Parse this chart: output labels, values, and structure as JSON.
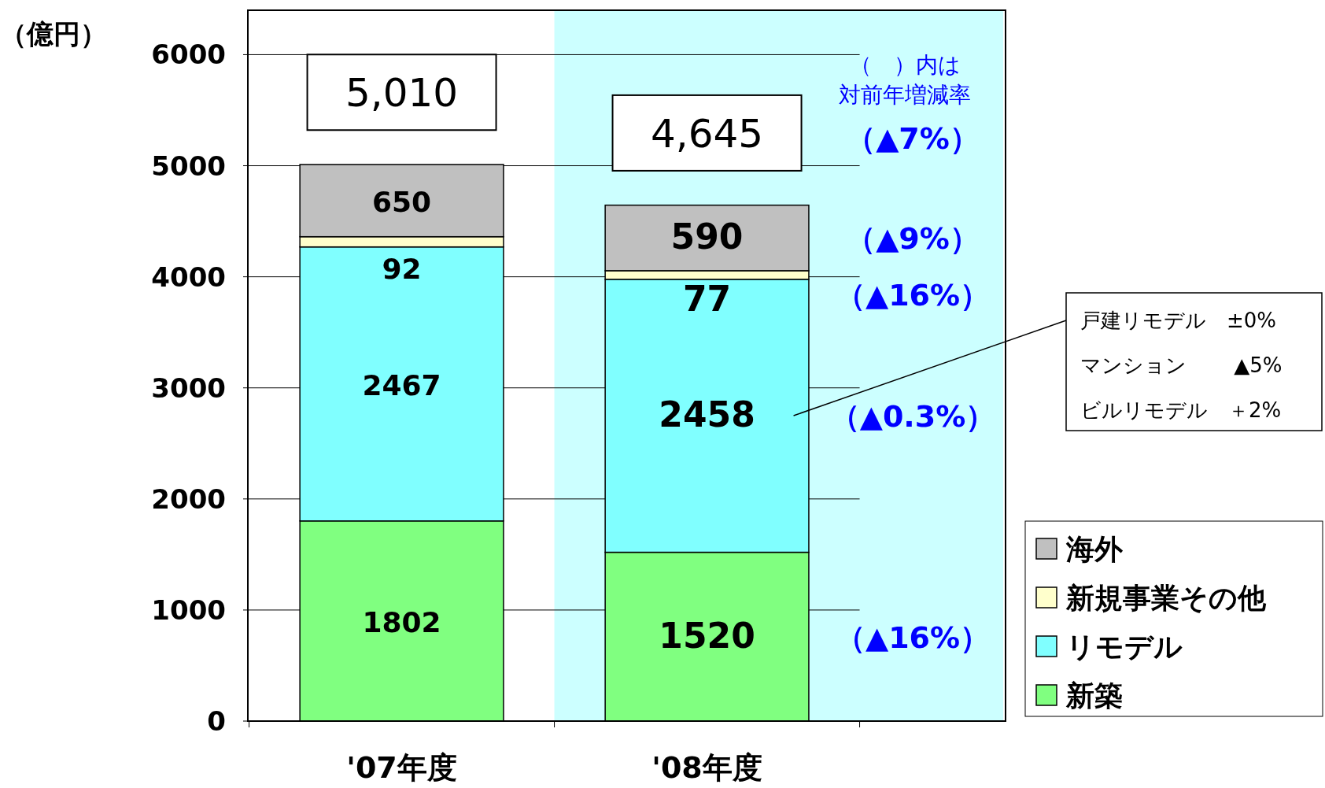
{
  "chart_data": {
    "type": "bar",
    "stacked": true,
    "ylabel": "（億円）",
    "categories": [
      "'07年度",
      "'08年度"
    ],
    "series": [
      {
        "name": "新築",
        "color": "#80ff80",
        "values": [
          1802,
          1520
        ]
      },
      {
        "name": "リモデル",
        "color": "#80ffff",
        "values": [
          2467,
          2458
        ]
      },
      {
        "name": "新規事業その他",
        "color": "#ffffcc",
        "values": [
          92,
          77
        ]
      },
      {
        "name": "海外",
        "color": "#c0c0c0",
        "values": [
          650,
          590
        ]
      }
    ],
    "totals": [
      "5,010",
      "4,645"
    ],
    "data_labels": true,
    "ylim": [
      0,
      6400
    ],
    "yticks": [
      0,
      1000,
      2000,
      3000,
      4000,
      5000,
      6000
    ],
    "grid": "y",
    "legend": "right",
    "bands": [
      {
        "axis": "x",
        "from": "'08年度",
        "to": "'08年度",
        "color": "#ccffff"
      }
    ],
    "annotations": [
      "（　）内は",
      "対前年増減率",
      "（▲7%）",
      "（▲9%）",
      "（▲16%）",
      "（▲0.3%）",
      "（▲16%）",
      "戸建リモデル　±0%",
      "マンション　　 ▲5%",
      "ビルリモデル　＋2%"
    ]
  }
}
